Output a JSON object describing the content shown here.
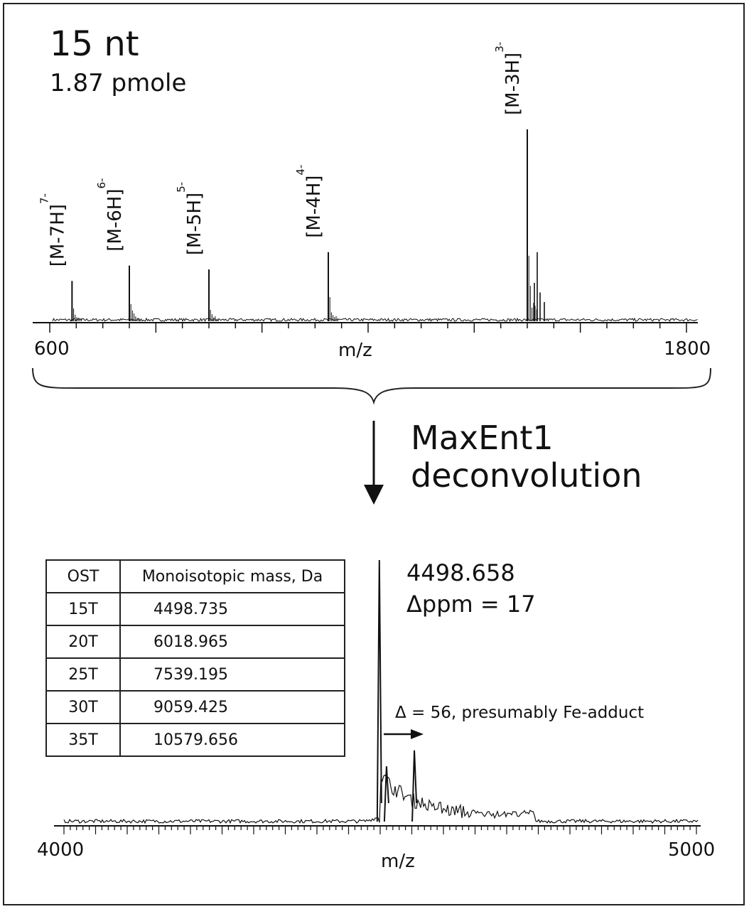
{
  "header": {
    "title": "15 nt",
    "subtitle": "1.87 pmole"
  },
  "process": {
    "label_line1": "MaxEnt1",
    "label_line2": "deconvolution"
  },
  "annotations": {
    "mass_value": "4498.658",
    "ppm_value": "Δppm = 17",
    "adduct_note": "Δ = 56, presumably Fe-adduct"
  },
  "table": {
    "headers": [
      "OST",
      "Monoisotopic mass, Da"
    ],
    "rows": [
      [
        "15T",
        "4498.735"
      ],
      [
        "20T",
        "6018.965"
      ],
      [
        "25T",
        "7539.195"
      ],
      [
        "30T",
        "9059.425"
      ],
      [
        "35T",
        "10579.656"
      ]
    ]
  },
  "chart_data": [
    {
      "type": "line",
      "xlabel": "m/z",
      "xlim": [
        600,
        1800
      ],
      "x_tick_labels": [
        "600",
        "1800"
      ],
      "peaks": [
        {
          "label": "[M-7H]",
          "charge": "7-",
          "x": 642,
          "intensity": 0.21
        },
        {
          "label": "[M-6H]",
          "charge": "6-",
          "x": 750,
          "intensity": 0.29
        },
        {
          "label": "[M-5H]",
          "charge": "5-",
          "x": 900,
          "intensity": 0.27
        },
        {
          "label": "[M-4H]",
          "charge": "4-",
          "x": 1125,
          "intensity": 0.36
        },
        {
          "label": "[M-3H]",
          "charge": "3-",
          "x": 1500,
          "intensity": 1.0
        }
      ]
    },
    {
      "type": "line",
      "xlabel": "m/z",
      "xlim": [
        4000,
        5000
      ],
      "x_tick_labels": [
        "4000",
        "5000"
      ],
      "peaks": [
        {
          "x": 4498.658,
          "intensity": 1.0
        },
        {
          "x": 4510,
          "intensity": 0.22
        },
        {
          "x": 4554,
          "intensity": 0.28
        }
      ]
    }
  ]
}
